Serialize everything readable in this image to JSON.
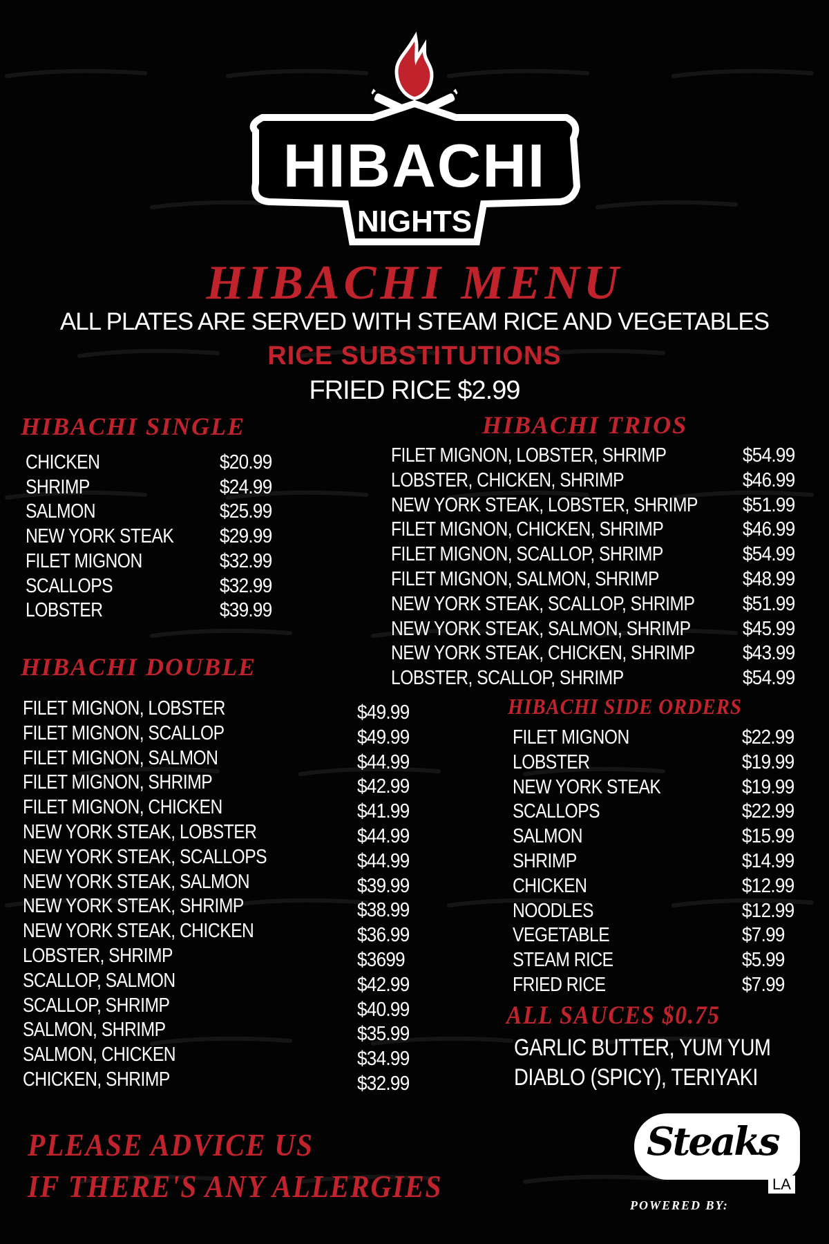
{
  "logo": {
    "line1": "HIBACHI",
    "line2": "NIGHTS",
    "colors": {
      "flame": "#c1232d",
      "badge": "#ffffff",
      "text": "#000000"
    }
  },
  "title": "HIBACHI MENU",
  "subtitle": "ALL PLATES ARE SERVED WITH STEAM RICE AND VEGETABLES",
  "rice_sub_heading": "RICE SUBSTITUTIONS",
  "rice_sub_item": "FRIED RICE $2.99",
  "single": {
    "heading": "HIBACHI SINGLE",
    "items": [
      {
        "name": "CHICKEN",
        "price": "$20.99"
      },
      {
        "name": "SHRIMP",
        "price": "$24.99"
      },
      {
        "name": "SALMON",
        "price": "$25.99"
      },
      {
        "name": "NEW YORK STEAK",
        "price": "$29.99"
      },
      {
        "name": "FILET MIGNON",
        "price": "$32.99"
      },
      {
        "name": "SCALLOPS",
        "price": "$32.99"
      },
      {
        "name": "LOBSTER",
        "price": "$39.99"
      }
    ]
  },
  "double": {
    "heading": "HIBACHI DOUBLE",
    "items": [
      {
        "name": "FILET MIGNON, LOBSTER",
        "price": "$49.99"
      },
      {
        "name": "FILET MIGNON, SCALLOP",
        "price": "$49.99"
      },
      {
        "name": "FILET MIGNON, SALMON",
        "price": "$44.99"
      },
      {
        "name": "FILET MIGNON, SHRIMP",
        "price": "$42.99"
      },
      {
        "name": "FILET MIGNON, CHICKEN",
        "price": "$41.99"
      },
      {
        "name": "NEW YORK STEAK, LOBSTER",
        "price": "$44.99"
      },
      {
        "name": "NEW YORK STEAK, SCALLOPS",
        "price": "$44.99"
      },
      {
        "name": "NEW YORK STEAK, SALMON",
        "price": "$39.99"
      },
      {
        "name": "NEW YORK STEAK, SHRIMP",
        "price": "$38.99"
      },
      {
        "name": "NEW YORK STEAK, CHICKEN",
        "price": "$36.99"
      },
      {
        "name": "LOBSTER, SHRIMP",
        "price": "$3699"
      },
      {
        "name": "SCALLOP, SALMON",
        "price": "$42.99"
      },
      {
        "name": "SCALLOP, SHRIMP",
        "price": "$40.99"
      },
      {
        "name": "SALMON, SHRIMP",
        "price": "$35.99"
      },
      {
        "name": "SALMON, CHICKEN",
        "price": "$34.99"
      },
      {
        "name": "CHICKEN, SHRIMP",
        "price": "$32.99"
      }
    ]
  },
  "trios": {
    "heading": "HIBACHI TRIOS",
    "items": [
      {
        "name": "FILET MIGNON, LOBSTER, SHRIMP",
        "price": "$54.99"
      },
      {
        "name": "LOBSTER, CHICKEN, SHRIMP",
        "price": "$46.99"
      },
      {
        "name": "NEW YORK STEAK, LOBSTER, SHRIMP",
        "price": "$51.99"
      },
      {
        "name": "FILET MIGNON, CHICKEN, SHRIMP",
        "price": "$46.99"
      },
      {
        "name": "FILET MIGNON, SCALLOP, SHRIMP",
        "price": "$54.99"
      },
      {
        "name": "FILET MIGNON, SALMON, SHRIMP",
        "price": "$48.99"
      },
      {
        "name": "NEW YORK STEAK, SCALLOP, SHRIMP",
        "price": "$51.99"
      },
      {
        "name": "NEW YORK STEAK, SALMON, SHRIMP",
        "price": "$45.99"
      },
      {
        "name": "NEW YORK STEAK, CHICKEN, SHRIMP",
        "price": "$43.99"
      },
      {
        "name": "LOBSTER, SCALLOP, SHRIMP",
        "price": "$54.99"
      }
    ]
  },
  "sides": {
    "heading": "HIBACHI SIDE ORDERS",
    "items": [
      {
        "name": "FILET MIGNON",
        "price": "$22.99"
      },
      {
        "name": "LOBSTER",
        "price": "$19.99"
      },
      {
        "name": "NEW YORK STEAK",
        "price": "$19.99"
      },
      {
        "name": "SCALLOPS",
        "price": "$22.99"
      },
      {
        "name": "SALMON",
        "price": "$15.99"
      },
      {
        "name": "SHRIMP",
        "price": "$14.99"
      },
      {
        "name": "CHICKEN",
        "price": "$12.99"
      },
      {
        "name": "NOODLES",
        "price": "$12.99"
      },
      {
        "name": "VEGETABLE",
        "price": "$7.99"
      },
      {
        "name": "STEAM RICE",
        "price": "$5.99"
      },
      {
        "name": "FRIED RICE",
        "price": "$7.99"
      }
    ]
  },
  "sauces": {
    "heading": "ALL SAUCES $0.75",
    "lines": [
      "GARLIC BUTTER, YUM YUM",
      "DIABLO (SPICY), TERIYAKI"
    ]
  },
  "allergy": {
    "line1": "PLEASE ADVICE US",
    "line2": "IF THERE'S ANY ALLERGIES"
  },
  "brand": {
    "powered_by": "POWERED BY:",
    "name": "Steaks",
    "sub": "LA"
  },
  "watermark": {
    "name": "Steaks",
    "sub": "LA"
  },
  "colors": {
    "accent": "#c1232d",
    "background": "#030303",
    "text": "#ffffff"
  }
}
